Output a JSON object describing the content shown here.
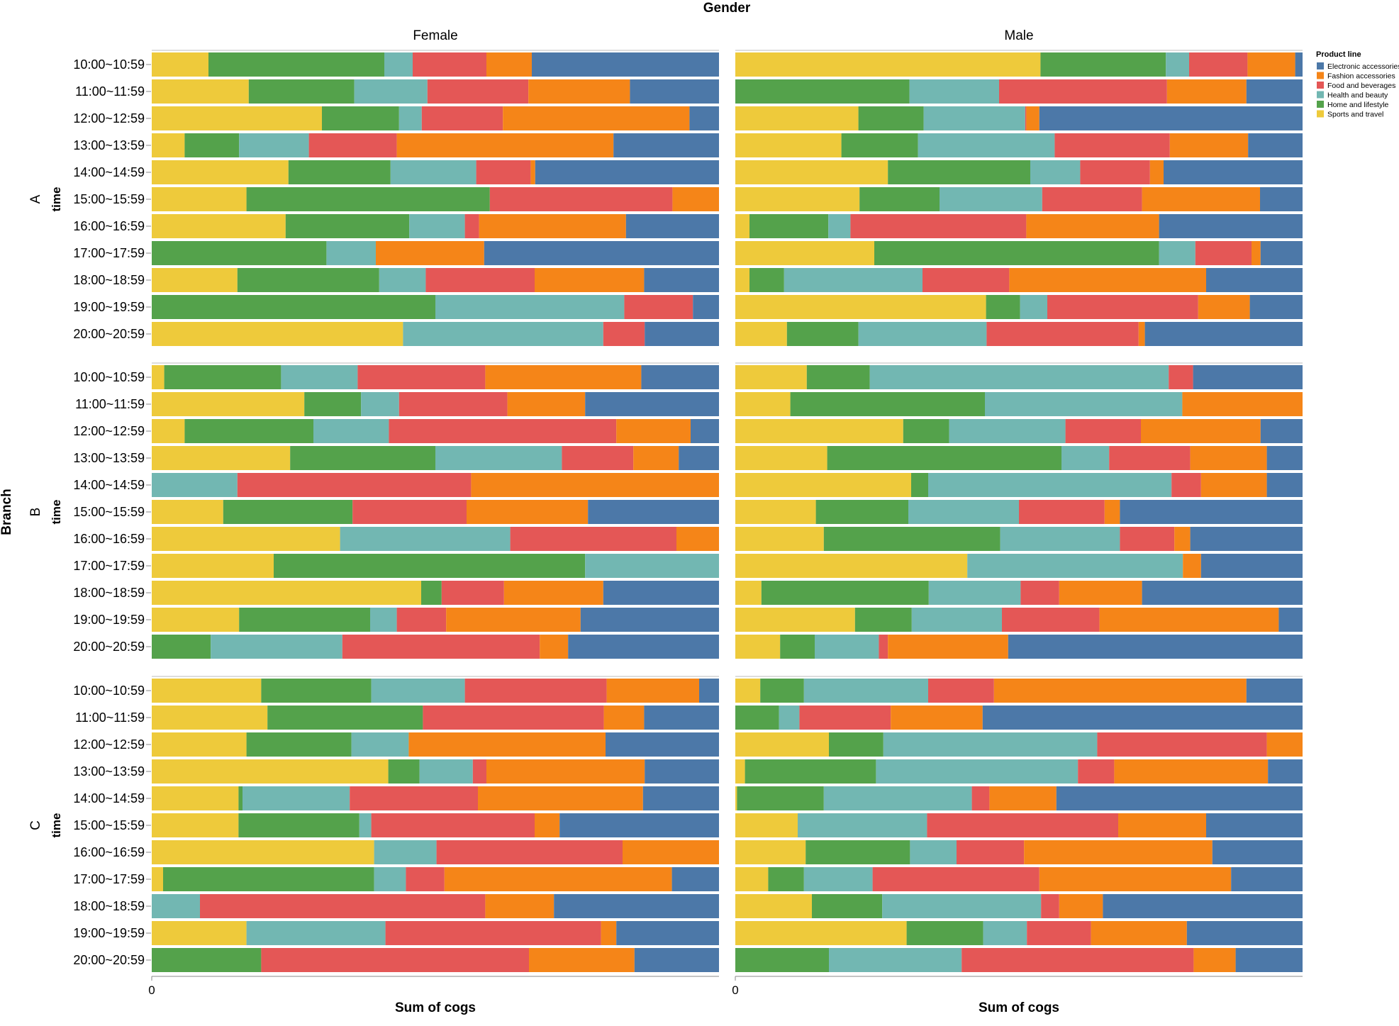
{
  "chart_data": {
    "type": "bar",
    "orientation": "horizontal",
    "stacked": "normalized",
    "column_facet_title": "Gender",
    "row_facet_title": "Branch",
    "columns": [
      "Female",
      "Male"
    ],
    "rows": [
      "A",
      "B",
      "C"
    ],
    "ylabel": "time",
    "xlabel": "Sum of cogs",
    "x_ticks": [
      "0"
    ],
    "legend": {
      "title": "Product line",
      "position": "top-right",
      "entries": [
        "Electronic accessories",
        "Fashion accessories",
        "Food and beverages",
        "Health and beauty",
        "Home and lifestyle",
        "Sports and travel"
      ]
    },
    "colors": {
      "Electronic accessories": "#4c78a8",
      "Fashion accessories": "#f58518",
      "Food and beverages": "#e45756",
      "Health and beauty": "#72b7b2",
      "Home and lifestyle": "#54a24b",
      "Sports and travel": "#eeca3b"
    },
    "stack_order": [
      "Sports and travel",
      "Home and lifestyle",
      "Health and beauty",
      "Food and beverages",
      "Fashion accessories",
      "Electronic accessories"
    ],
    "categories": [
      "10:00~10:59",
      "11:00~11:59",
      "12:00~12:59",
      "13:00~13:59",
      "14:00~14:59",
      "15:00~15:59",
      "16:00~16:59",
      "17:00~17:59",
      "18:00~18:59",
      "19:00~19:59",
      "20:00~20:59"
    ],
    "value_unit": "percent share of sum of cogs, in stack_order",
    "facets": [
      {
        "branch": "A",
        "gender": "Female",
        "values": [
          [
            10,
            31,
            5,
            13,
            8,
            33
          ],
          [
            17.1,
            18.6,
            12.9,
            17.8,
            17.9,
            15.7
          ],
          [
            30,
            13.6,
            4,
            14.3,
            32.9,
            5.2
          ],
          [
            5.8,
            9.6,
            12.3,
            15.5,
            38.2,
            18.6
          ],
          [
            24.1,
            18,
            15.1,
            9.6,
            0.8,
            32.4
          ],
          [
            16.7,
            42.9,
            0,
            32.2,
            8.2,
            0
          ],
          [
            23.6,
            21.8,
            9.8,
            2.5,
            25.9,
            16.4
          ],
          [
            0,
            30.8,
            8.7,
            0,
            19.1,
            41.4
          ],
          [
            15.1,
            25,
            8.2,
            19.2,
            19.3,
            13.2
          ],
          [
            0,
            50,
            33.3,
            12.1,
            0,
            4.6
          ],
          [
            44.3,
            0,
            35.3,
            7.3,
            0,
            13.1
          ]
        ]
      },
      {
        "branch": "A",
        "gender": "Male",
        "values": [
          [
            53.8,
            22.1,
            4.1,
            10.3,
            8.4,
            1.3
          ],
          [
            0,
            30.7,
            15.8,
            29.6,
            14,
            9.9
          ],
          [
            21.7,
            11.5,
            17.9,
            0.2,
            2.3,
            46.4
          ],
          [
            18.7,
            13.5,
            24.1,
            20.3,
            13.8,
            9.6
          ],
          [
            26.9,
            25.1,
            8.8,
            12.3,
            2.4,
            24.5
          ],
          [
            21.9,
            14.1,
            18.1,
            17.6,
            20.8,
            7.5
          ],
          [
            2.5,
            13.9,
            3.9,
            31,
            23.4,
            25.3
          ],
          [
            24.5,
            50.2,
            6.4,
            9.9,
            1.6,
            7.4
          ],
          [
            2.5,
            6.1,
            24.4,
            15.3,
            34.7,
            17
          ],
          [
            44.2,
            6,
            4.8,
            26.6,
            9.1,
            9.3
          ],
          [
            9.1,
            12.6,
            22.6,
            26.8,
            1.1,
            27.8
          ]
        ]
      },
      {
        "branch": "B",
        "gender": "Female",
        "values": [
          [
            2.2,
            20.6,
            13.5,
            22.5,
            27.5,
            13.7
          ],
          [
            26.9,
            10,
            6.7,
            19.1,
            13.7,
            23.6
          ],
          [
            5.8,
            22.7,
            13.3,
            40.1,
            13.1,
            5
          ],
          [
            24.4,
            25.6,
            22.3,
            12.6,
            8,
            7.1
          ],
          [
            0,
            0,
            15.1,
            41.2,
            43.7,
            0
          ],
          [
            12.6,
            22.8,
            0,
            20.1,
            21.4,
            23.1
          ],
          [
            33.2,
            0,
            30,
            29.3,
            7.5,
            0
          ],
          [
            21.5,
            54.9,
            23.6,
            0,
            0,
            0
          ],
          [
            47.5,
            3.6,
            0,
            11,
            17.5,
            20.4
          ],
          [
            15.4,
            23.1,
            4.7,
            8.7,
            23.7,
            24.4
          ],
          [
            0,
            10.4,
            23.2,
            34.8,
            5,
            26.6
          ]
        ]
      },
      {
        "branch": "B",
        "gender": "Male",
        "values": [
          [
            12.6,
            11.1,
            52.7,
            4.3,
            0,
            19.3
          ],
          [
            9.7,
            34.3,
            34.8,
            0,
            21.2,
            0
          ],
          [
            29.6,
            8.1,
            20.5,
            13.3,
            21.1,
            7.4
          ],
          [
            16.2,
            41.3,
            8.4,
            14.3,
            13.5,
            6.3
          ],
          [
            31,
            3,
            42.9,
            5.2,
            11.6,
            6.3
          ],
          [
            14.2,
            16.3,
            19.5,
            15.1,
            2.7,
            32.2
          ],
          [
            15.6,
            31.1,
            21.1,
            9.6,
            2.8,
            19.8
          ],
          [
            40.9,
            0,
            38,
            0,
            3.2,
            17.9
          ],
          [
            4.6,
            29.5,
            16.2,
            6.8,
            14.6,
            28.3
          ],
          [
            21.1,
            10,
            15.9,
            17.2,
            31.6,
            4.2
          ],
          [
            7.9,
            6.1,
            11.3,
            1.6,
            21.2,
            51.9
          ]
        ]
      },
      {
        "branch": "C",
        "gender": "Female",
        "values": [
          [
            19.3,
            19.4,
            16.5,
            25,
            16.3,
            3.5
          ],
          [
            20.4,
            27.4,
            0,
            31.9,
            7.1,
            13.2
          ],
          [
            16.7,
            18.5,
            10.1,
            0,
            34.7,
            20
          ],
          [
            41.7,
            5.5,
            9.4,
            2.4,
            27.9,
            13.1
          ],
          [
            15.3,
            0.7,
            18.9,
            22.6,
            29.1,
            13.4
          ],
          [
            15.3,
            21.3,
            2.1,
            28.8,
            4.4,
            28.1
          ],
          [
            39.2,
            0,
            11,
            32.8,
            17,
            0
          ],
          [
            2,
            37.2,
            5.6,
            6.8,
            40.1,
            8.3
          ],
          [
            0,
            0,
            8.5,
            50.3,
            12.1,
            29.1
          ],
          [
            16.7,
            0,
            24.5,
            38,
            2.7,
            18.1
          ],
          [
            0,
            19.3,
            0,
            47.2,
            18.6,
            14.9
          ]
        ]
      },
      {
        "branch": "C",
        "gender": "Male",
        "values": [
          [
            4.4,
            7.7,
            21.9,
            11.6,
            44.5,
            9.9
          ],
          [
            0,
            7.7,
            3.6,
            16.1,
            16.2,
            56.4
          ],
          [
            16.5,
            9.6,
            37.7,
            29.9,
            6.3,
            0
          ],
          [
            1.7,
            23.1,
            35.6,
            6.4,
            27.1,
            6.1
          ],
          [
            0.3,
            15.3,
            26.1,
            3.1,
            11.8,
            43.4
          ],
          [
            11,
            0,
            22.8,
            33.7,
            15.5,
            17
          ],
          [
            12.4,
            18.4,
            8.2,
            11.9,
            33.2,
            15.9
          ],
          [
            5.8,
            6.3,
            12.1,
            29.4,
            33.8,
            12.6
          ],
          [
            13.5,
            12.4,
            28,
            3.2,
            7.7,
            35.2
          ],
          [
            30.2,
            13.5,
            7.7,
            11.3,
            16.9,
            20.4
          ],
          [
            0,
            16.5,
            23.4,
            40.9,
            7.4,
            11.8
          ]
        ]
      }
    ]
  }
}
